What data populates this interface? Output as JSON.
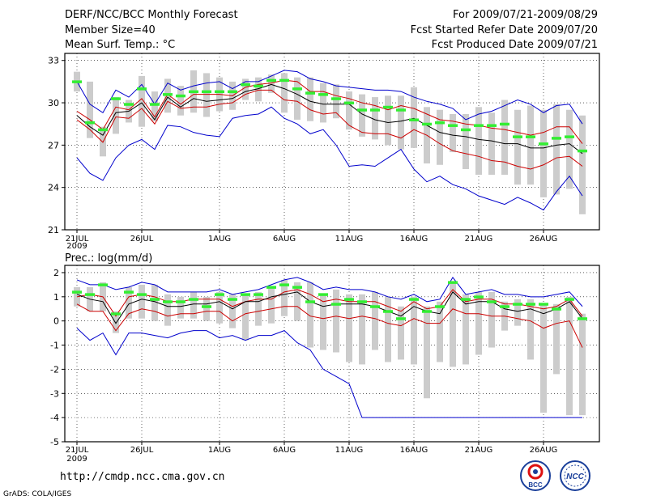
{
  "header": {
    "left": [
      "DERF/NCC/BCC Monthly Forecast",
      "Member Size=40",
      "Mean Surf. Temp.: °C"
    ],
    "right": [
      "For 2009/07/21-2009/08/29",
      "Fcst Started Refer Date 2009/07/20",
      "Fcst Produced Date 2009/07/21"
    ]
  },
  "footer": {
    "url": "http://cmdp.ncc.cma.gov.cn",
    "grads": "GrADS: COLA/IGES"
  },
  "logos": {
    "bcc": "BCC",
    "ncc": "NCC"
  },
  "colors": {
    "envelope": "#0000cc",
    "spread": "#cc0000",
    "mean": "#000000",
    "box": "#cccccc",
    "median": "#33ee33"
  },
  "chart_data": [
    {
      "type": "box-plus-line",
      "title": "Mean Surf. Temp.: °C",
      "xlabels": [
        "21JUL",
        "26JUL",
        "1AUG",
        "6AUG",
        "11AUG",
        "16AUG",
        "21AUG",
        "26AUG"
      ],
      "xlabel_sub": "2009",
      "xlabel_days": [
        0,
        5,
        11,
        16,
        21,
        26,
        31,
        36
      ],
      "ylim": [
        21,
        33.5
      ],
      "yticks": [
        21,
        24,
        27,
        30,
        33
      ],
      "days": 40,
      "series": [
        {
          "name": "max",
          "color": "#0000cc",
          "values": [
            31.5,
            29.9,
            29.3,
            30.9,
            30.4,
            31.3,
            29.9,
            31.4,
            30.9,
            31.2,
            31.4,
            31.5,
            31,
            31.5,
            31.5,
            31.9,
            32.3,
            32.2,
            31.7,
            31.5,
            31.2,
            31.1,
            31,
            30.9,
            30.9,
            30.8,
            30.4,
            30.1,
            29.9,
            29.6,
            28.8,
            29.2,
            29.4,
            29.8,
            30.2,
            29.9,
            29.3,
            29.8,
            29.9,
            28.5
          ]
        },
        {
          "name": "upper",
          "color": "#cc0000",
          "values": [
            29.4,
            28.8,
            28.1,
            29.7,
            29.5,
            30.3,
            29,
            30.6,
            29.9,
            30.6,
            30.6,
            30.6,
            30.5,
            31.1,
            31.3,
            31.4,
            31.6,
            31.5,
            30.8,
            30.8,
            30.5,
            30.3,
            30,
            29.8,
            29.5,
            29.8,
            29.6,
            29.2,
            28.8,
            28.7,
            28.5,
            28.4,
            28.2,
            28.1,
            27.9,
            27.7,
            27.9,
            28.3,
            28.3,
            27.1
          ]
        },
        {
          "name": "mean",
          "color": "#000000",
          "values": [
            29.1,
            28.3,
            27.7,
            29.3,
            29.4,
            30,
            28.8,
            30.4,
            29.7,
            30.3,
            30.1,
            30.2,
            30.3,
            30.8,
            31,
            31.3,
            31,
            30.6,
            30.1,
            29.9,
            29.9,
            29.9,
            29.2,
            28.8,
            28.6,
            28.7,
            28.9,
            28.4,
            27.9,
            27.7,
            27.6,
            27.4,
            27.3,
            27.1,
            27.1,
            26.8,
            26.8,
            27,
            27.1,
            26.4
          ]
        },
        {
          "name": "lower",
          "color": "#cc0000",
          "values": [
            28.8,
            28.1,
            27.2,
            29,
            28.9,
            29.6,
            28.5,
            30.1,
            29.6,
            29.7,
            29.7,
            29.9,
            30,
            30.6,
            30.9,
            30.9,
            30.2,
            30.1,
            29.5,
            29.2,
            29.3,
            28.4,
            27.9,
            27.8,
            27.8,
            27.5,
            28.1,
            27.7,
            27.1,
            26.6,
            26.4,
            26.2,
            25.9,
            25.8,
            25.5,
            25.3,
            25.6,
            26.1,
            26.2,
            25.5
          ]
        },
        {
          "name": "min",
          "color": "#0000cc",
          "values": [
            26.1,
            25,
            24.5,
            26.1,
            27,
            27.4,
            26.7,
            28.4,
            28.3,
            27.9,
            27.7,
            27.6,
            28.9,
            29.1,
            29.2,
            29.7,
            28.9,
            28.5,
            27.8,
            28.1,
            27,
            25.5,
            25.6,
            25.5,
            26.1,
            26.7,
            25.3,
            24.4,
            24.8,
            24.2,
            23.9,
            23.4,
            23.1,
            22.8,
            23.3,
            22.9,
            22.4,
            23.7,
            24.8,
            23.4
          ]
        }
      ],
      "box_low": [
        30.8,
        27.5,
        26.2,
        27.8,
        28.6,
        28.3,
        28.7,
        29.3,
        29.1,
        29.3,
        29,
        29.4,
        29.5,
        30.2,
        30.1,
        30.7,
        29.3,
        28.8,
        28.7,
        28.6,
        28.9,
        28.1,
        27.6,
        27.4,
        27,
        26.7,
        26.8,
        25.7,
        25.6,
        26.5,
        25.3,
        24.9,
        24.9,
        24.9,
        24.2,
        24.2,
        23.3,
        23.5,
        23.9,
        22.1
      ],
      "box_high": [
        32.2,
        31.5,
        28.3,
        30.4,
        30.2,
        31.9,
        30.8,
        31.7,
        31.2,
        32.3,
        32.1,
        31.8,
        31.5,
        31.7,
        31.8,
        32,
        32.1,
        31.8,
        31.8,
        31.4,
        31.3,
        30.8,
        30.6,
        30.4,
        30.5,
        30.5,
        31.1,
        29.7,
        29.5,
        29.2,
        29.2,
        29.7,
        29.3,
        30.2,
        29.5,
        29.8,
        29.5,
        29.9,
        29.5,
        29.1
      ],
      "median": [
        31.5,
        28.6,
        28.1,
        30.3,
        29.9,
        31,
        29.9,
        30.6,
        30.5,
        30.8,
        30.8,
        30.8,
        30.8,
        31.3,
        31.2,
        31.6,
        31.6,
        31,
        30.7,
        30.6,
        30.3,
        30,
        29.5,
        29.5,
        29.7,
        29.5,
        28.8,
        28.5,
        28.6,
        28.4,
        28.1,
        28.4,
        28.4,
        28.5,
        27.6,
        27.6,
        27.1,
        27.5,
        27.6,
        26.6
      ]
    },
    {
      "type": "box-plus-line",
      "title": "Prec.: log(mm/d)",
      "xlabels": [
        "21JUL",
        "26JUL",
        "1AUG",
        "6AUG",
        "11AUG",
        "16AUG",
        "21AUG",
        "26AUG"
      ],
      "xlabel_sub": "2009",
      "xlabel_days": [
        0,
        5,
        11,
        16,
        21,
        26,
        31,
        36
      ],
      "ylim": [
        -5,
        2.3
      ],
      "yticks": [
        -5,
        -4,
        -3,
        -2,
        -1,
        0,
        1,
        2
      ],
      "days": 40,
      "series": [
        {
          "name": "max",
          "color": "#0000cc",
          "values": [
            1.7,
            1.5,
            1.5,
            1.3,
            1.4,
            1.6,
            1.5,
            1.2,
            1.2,
            1.2,
            1.2,
            1.3,
            1.1,
            1.2,
            1.3,
            1.5,
            1.7,
            1.8,
            1.6,
            1.3,
            1.4,
            1.3,
            1.3,
            1.2,
            1,
            0.9,
            1.1,
            0.8,
            0.9,
            1.8,
            1.1,
            1.2,
            1.3,
            1.1,
            1.1,
            1,
            1,
            1.1,
            1.2,
            0.6
          ]
        },
        {
          "name": "upper",
          "color": "#cc0000",
          "values": [
            1,
            1.1,
            1,
            0.2,
            1,
            1.1,
            1,
            0.8,
            0.8,
            0.9,
            0.9,
            0.9,
            0.6,
            0.8,
            0.9,
            0.9,
            1.2,
            1.3,
            1.1,
            0.8,
            0.9,
            0.8,
            0.8,
            0.8,
            0.6,
            0.4,
            0.8,
            0.5,
            0.6,
            1.3,
            0.8,
            0.9,
            0.9,
            0.7,
            0.7,
            0.6,
            0.5,
            0.6,
            0.9,
            0.2
          ]
        },
        {
          "name": "mean",
          "color": "#000000",
          "values": [
            1.1,
            0.9,
            0.8,
            -0.1,
            0.7,
            0.9,
            0.8,
            0.6,
            0.6,
            0.7,
            0.7,
            0.8,
            0.5,
            0.8,
            0.8,
            1,
            1.1,
            1.2,
            0.8,
            0.6,
            0.7,
            0.7,
            0.7,
            0.6,
            0.4,
            0.2,
            0.6,
            0.4,
            0.3,
            1.2,
            0.7,
            0.8,
            0.8,
            0.5,
            0.4,
            0.5,
            0.3,
            0.5,
            0.8,
            0.1
          ]
        },
        {
          "name": "lower",
          "color": "#cc0000",
          "values": [
            0.7,
            0.4,
            0.4,
            -0.4,
            0.3,
            0.5,
            0.4,
            0.2,
            0.3,
            0.3,
            0.4,
            0.4,
            0,
            0.3,
            0.4,
            0.5,
            0.6,
            0.6,
            0.2,
            0.1,
            0.2,
            0.1,
            0.2,
            0.1,
            -0.1,
            -0.2,
            0.1,
            -0.1,
            -0.1,
            0.5,
            0.3,
            0.3,
            0.2,
            0.2,
            0.1,
            0,
            -0.3,
            -0.1,
            0,
            -1.1
          ]
        },
        {
          "name": "min",
          "color": "#0000cc",
          "values": [
            -0.3,
            -0.8,
            -0.5,
            -1.4,
            -0.5,
            -0.5,
            -0.6,
            -0.7,
            -0.5,
            -0.4,
            -0.4,
            -0.7,
            -0.6,
            -0.8,
            -0.6,
            -0.6,
            -0.4,
            -0.9,
            -1.2,
            -2,
            -2.3,
            -2.6,
            -4,
            -4,
            -4,
            -4,
            -4,
            -4,
            -4,
            -4,
            -4,
            -4,
            -4,
            -4,
            -4,
            -4,
            -4,
            -4,
            -4,
            -4
          ]
        }
      ],
      "box_low": [
        0.6,
        0.4,
        0.4,
        -0.5,
        0.1,
        0.1,
        0,
        -0.2,
        0.1,
        0.1,
        0,
        -0.1,
        -0.3,
        -0.8,
        -0.2,
        -0.1,
        0.2,
        0,
        -1.1,
        -1.2,
        -1.3,
        -1.7,
        -1.8,
        -1.2,
        -1.7,
        -1.6,
        -1.8,
        -3.2,
        -1.7,
        -1.9,
        -1.8,
        -1.4,
        -1.1,
        -0.4,
        -0.2,
        -1.6,
        -3.8,
        -2.2,
        -3.9,
        -3.9
      ],
      "box_high": [
        1.4,
        1.4,
        1.6,
        0.4,
        1.4,
        1.5,
        1.5,
        1.1,
        1,
        1.2,
        1,
        1.2,
        1.1,
        1.1,
        1.2,
        1.4,
        1.7,
        1.6,
        1.6,
        1.1,
        1.3,
        1.1,
        1.1,
        1.2,
        1,
        0.6,
        1,
        0.6,
        0.8,
        1.6,
        1.1,
        1.2,
        1.2,
        0.8,
        0.9,
        0.9,
        0.7,
        0.7,
        1,
        0.3
      ],
      "median": [
        1.2,
        1.1,
        1.5,
        0.3,
        1.2,
        1.1,
        0.9,
        0.8,
        0.8,
        0.9,
        0.6,
        1.1,
        0.9,
        1.1,
        1.1,
        1.4,
        1.5,
        1.4,
        0.8,
        1.1,
        0.7,
        0.9,
        0.8,
        0.6,
        0.4,
        0.1,
        0.9,
        0.4,
        0.6,
        1.6,
        0.9,
        1,
        0.8,
        0.6,
        0.7,
        0.7,
        0.7,
        0.5,
        0.9,
        0.1
      ]
    }
  ]
}
